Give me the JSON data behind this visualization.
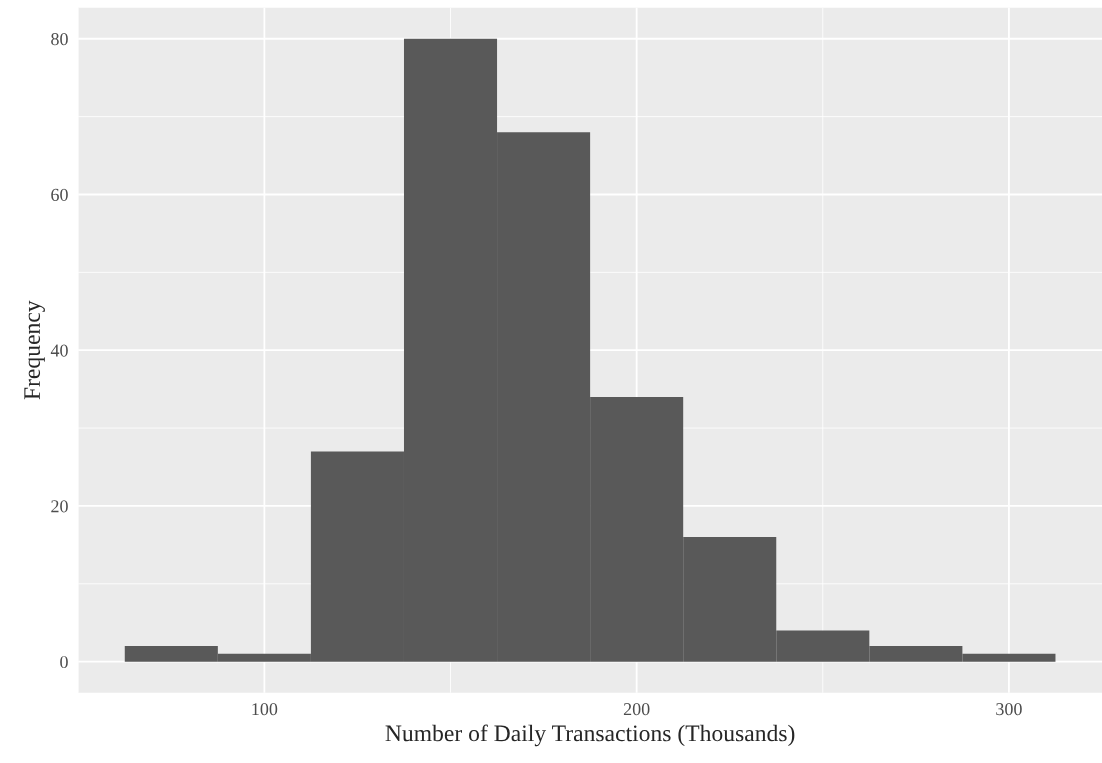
{
  "chart_data": {
    "type": "histogram",
    "xlabel": "Number of Daily Transactions (Thousands)",
    "ylabel": "Frequency",
    "bins": [
      62.5,
      87.5,
      112.5,
      137.5,
      162.5,
      187.5,
      212.5,
      237.5,
      262.5,
      287.5,
      312.5
    ],
    "values": [
      2,
      1,
      27,
      80,
      68,
      34,
      16,
      4,
      2,
      1
    ],
    "color": "#595959",
    "xlim": [
      50,
      325
    ],
    "xticks": [
      100,
      200,
      300
    ],
    "ylim": [
      -4,
      84
    ],
    "yticks": [
      0,
      20,
      40,
      60,
      80
    ],
    "grid": true,
    "legend": false
  }
}
